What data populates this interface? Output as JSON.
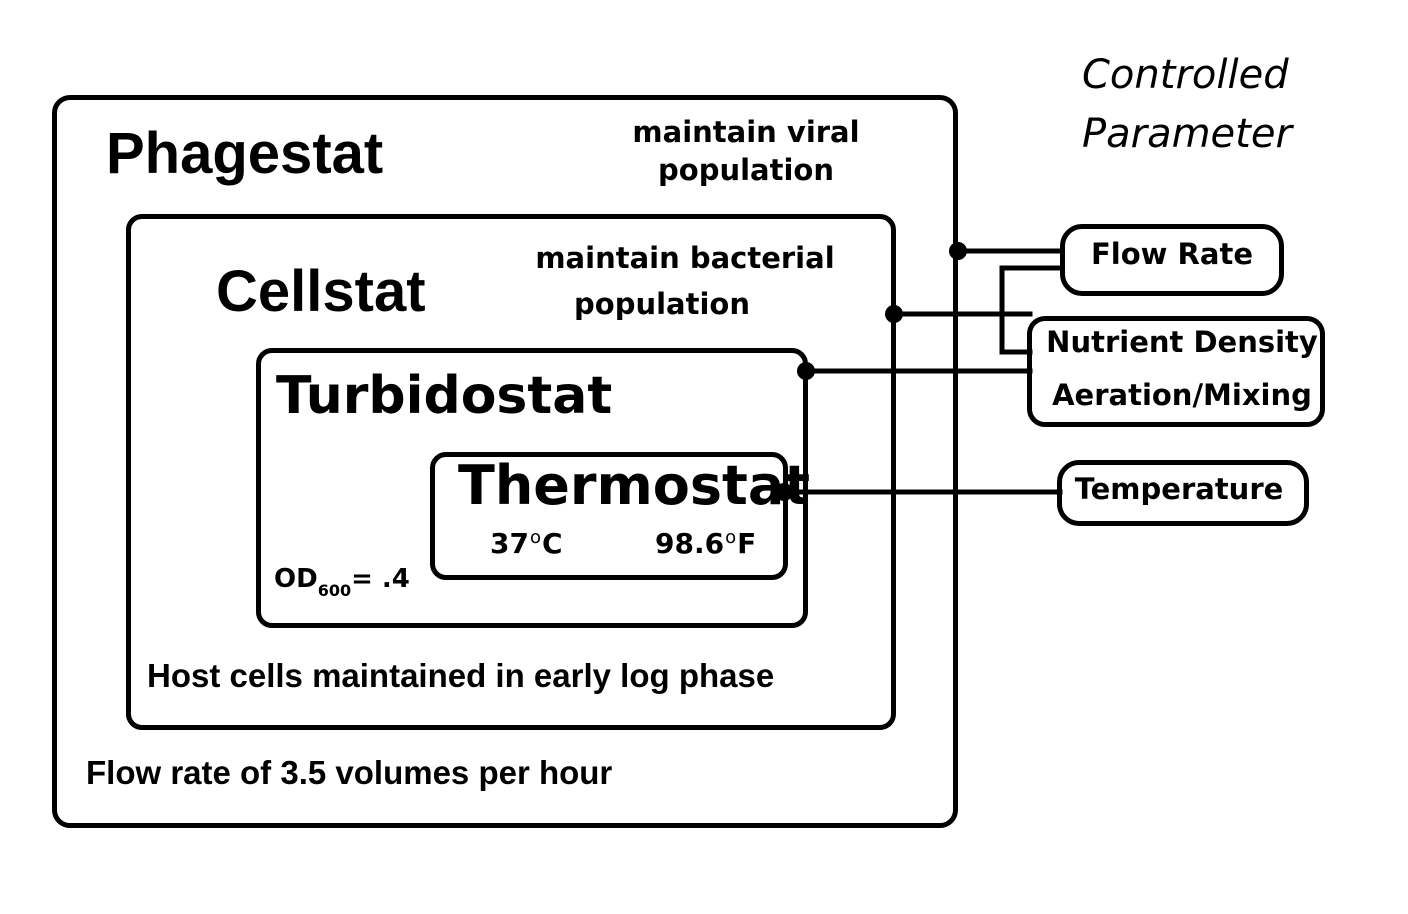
{
  "header": {
    "line1": "Controlled",
    "line2": "Parameter"
  },
  "phagestat": {
    "title": "Phagestat",
    "goal_line1": "maintain viral",
    "goal_line2": "population",
    "note": "Flow rate of 3.5 volumes per hour"
  },
  "cellstat": {
    "title": "Cellstat",
    "goal_line1": "maintain bacterial",
    "goal_line2": "population",
    "note": "Host cells maintained in early log phase"
  },
  "turbidostat": {
    "title": "Turbidostat",
    "od_label": "OD",
    "od_subscript": "600",
    "od_value": "= .4"
  },
  "thermostat": {
    "title": "Thermostat",
    "celsius_value": "37",
    "celsius_unit": "C",
    "fahrenheit_value": "98.6",
    "fahrenheit_unit": "F",
    "degree_symbol": "o"
  },
  "parameters": {
    "flow_rate": "Flow Rate",
    "nutrient_density": "Nutrient Density",
    "aeration_mixing": "Aeration/Mixing",
    "temperature": "Temperature"
  }
}
